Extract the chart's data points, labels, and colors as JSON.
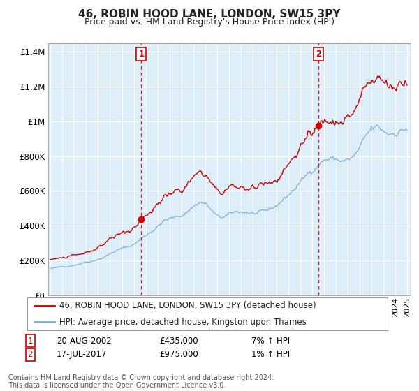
{
  "title": "46, ROBIN HOOD LANE, LONDON, SW15 3PY",
  "subtitle": "Price paid vs. HM Land Registry's House Price Index (HPI)",
  "background_color": "#ffffff",
  "plot_bg_color": "#ddeeff",
  "legend_line1": "46, ROBIN HOOD LANE, LONDON, SW15 3PY (detached house)",
  "legend_line2": "HPI: Average price, detached house, Kingston upon Thames",
  "annotation1_date": "20-AUG-2002",
  "annotation1_price": "£435,000",
  "annotation1_hpi": "7% ↑ HPI",
  "annotation2_date": "17-JUL-2017",
  "annotation2_price": "£975,000",
  "annotation2_hpi": "1% ↑ HPI",
  "footer": "Contains HM Land Registry data © Crown copyright and database right 2024.\nThis data is licensed under the Open Government Licence v3.0.",
  "price_color": "#cc0000",
  "hpi_color": "#7ab0d4",
  "annotation_color": "#cc0000",
  "sale1_x": 2002.637,
  "sale1_y": 435000,
  "sale2_x": 2017.537,
  "sale2_y": 975000,
  "ylim_max": 1450000,
  "ylim_min": 0,
  "xlim_min": 1994.8,
  "xlim_max": 2025.3,
  "yticks": [
    0,
    200000,
    400000,
    600000,
    800000,
    1000000,
    1200000,
    1400000
  ],
  "ytick_labels": [
    "£0",
    "£200K",
    "£400K",
    "£600K",
    "£800K",
    "£1M",
    "£1.2M",
    "£1.4M"
  ]
}
